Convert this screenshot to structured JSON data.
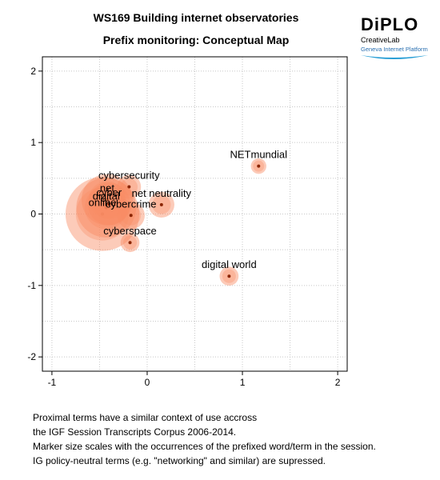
{
  "title_line1": "WS169 Building internet observatories",
  "title_line2": "Prefix monitoring: Conceptual Map",
  "logo": {
    "word": "DiPLO",
    "sub1": "CreativeLab",
    "sub2": "Geneva Internet Platform"
  },
  "caption": [
    "Proximal terms have a similar context of use accross",
    "the IGF Session Transcripts Corpus 2006-2014.",
    "Marker size scales with the occurrences of the prefixed word/term in the session.",
    "IG policy-neutral terms (e.g. \"networking\" and similar) are supressed."
  ],
  "colors": {
    "marker_fill": "#f98b63",
    "marker_core": "#8b2500",
    "grid": "#c8c8c8"
  },
  "chart_data": {
    "type": "scatter",
    "xlim": [
      -1.1,
      2.1
    ],
    "ylim": [
      -2.2,
      2.2
    ],
    "xticks": [
      -1,
      0,
      1,
      2
    ],
    "yticks": [
      -2,
      -1,
      0,
      1,
      2
    ],
    "xtick_labels": [
      "-1",
      "0",
      "1",
      "2"
    ],
    "ytick_labels": [
      "-2",
      "-1",
      "0",
      "1",
      "2"
    ],
    "grid": true,
    "points": [
      {
        "label": "cyberspace",
        "x": -0.18,
        "y": -0.4,
        "size": 2
      },
      {
        "label": "NETmundial",
        "x": 1.17,
        "y": 0.67,
        "size": 1
      },
      {
        "label": "digital world",
        "x": 0.86,
        "y": -0.87,
        "size": 2
      },
      {
        "label": "net neutrality",
        "x": 0.15,
        "y": 0.13,
        "size": 5
      },
      {
        "label": "cybersecurity",
        "x": -0.19,
        "y": 0.38,
        "size": 4
      },
      {
        "label": "cybercrime",
        "x": -0.17,
        "y": -0.02,
        "size": 6
      },
      {
        "label": "cyber",
        "x": -0.4,
        "y": 0.14,
        "size": 18
      },
      {
        "label": "net",
        "x": -0.42,
        "y": 0.2,
        "size": 28
      },
      {
        "label": "digital",
        "x": -0.43,
        "y": 0.09,
        "size": 40
      },
      {
        "label": "online",
        "x": -0.47,
        "y": 0.0,
        "size": 64
      }
    ]
  }
}
